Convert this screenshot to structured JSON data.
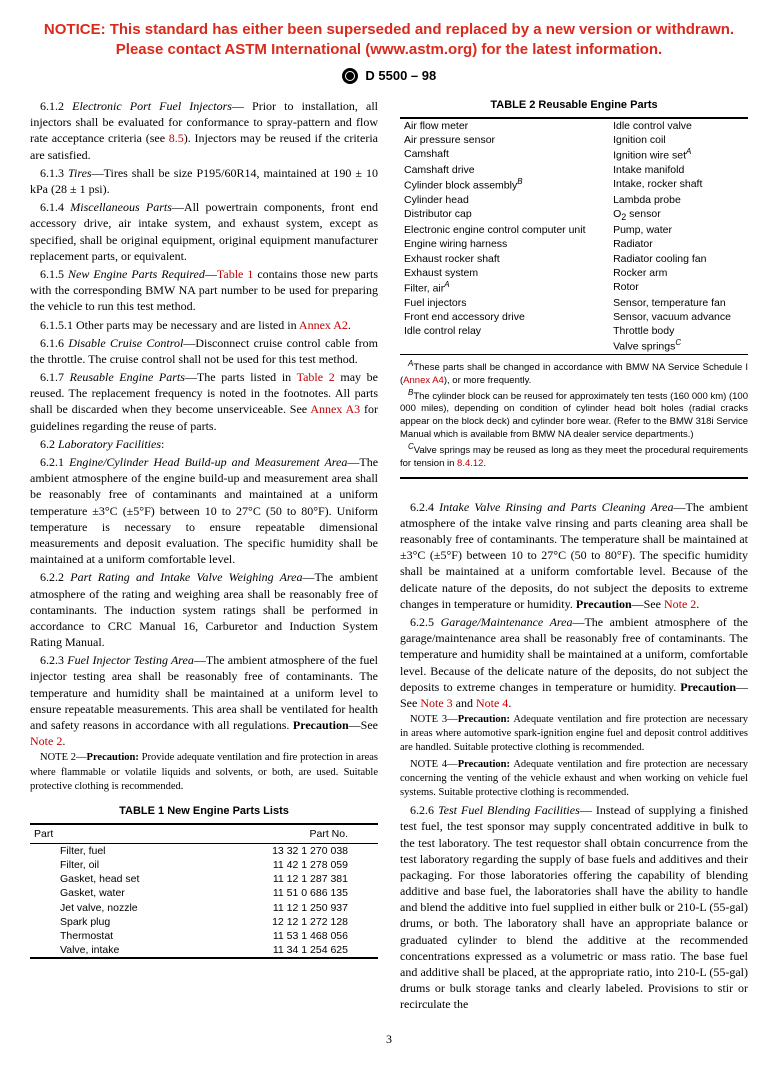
{
  "notice": {
    "line1": "NOTICE: This standard has either been superseded and replaced by a new version or withdrawn.",
    "line2": "Please contact ASTM International (www.astm.org) for the latest information.",
    "color": "#d92a1c"
  },
  "header": "D 5500 – 98",
  "page_number": "3",
  "paragraphs": {
    "p612_num": "6.1.2",
    "p612_title": "Electronic Port Fuel Injectors",
    "p612_body": "— Prior to installation, all injectors shall be evaluated for conformance to spray-pattern and flow rate acceptance criteria (see ",
    "p612_link": "8.5",
    "p612_body2": "). Injectors may be reused if the criteria are satisfied.",
    "p613_num": "6.1.3",
    "p613_title": "Tires",
    "p613_body": "—Tires shall be size P195/60R14, maintained at 190 ± 10 kPa (28 ± 1 psi).",
    "p614_num": "6.1.4",
    "p614_title": "Miscellaneous Parts",
    "p614_body": "—All powertrain components, front end accessory drive, air intake system, and exhaust system, except as specified, shall be original equipment, original equipment manufacturer replacement parts, or equivalent.",
    "p615_num": "6.1.5",
    "p615_title": "New Engine Parts Required",
    "p615_body": "—",
    "p615_link": "Table 1",
    "p615_body2": " contains those new parts with the corresponding BMW NA part number to be used for preparing the vehicle to run this test method.",
    "p6151_num": "6.1.5.1",
    "p6151_body": " Other parts may be necessary and are listed in ",
    "p6151_link": "Annex A2",
    "p6151_body2": ".",
    "p616_num": "6.1.6",
    "p616_title": "Disable Cruise Control",
    "p616_body": "—Disconnect cruise control cable from the throttle. The cruise control shall not be used for this test method.",
    "p617_num": "6.1.7",
    "p617_title": "Reusable Engine Parts",
    "p617_body": "—The parts listed in ",
    "p617_link": "Table 2",
    "p617_body2": " may be reused. The replacement frequency is noted in the footnotes. All parts shall be discarded when they become unserviceable. See ",
    "p617_link2": "Annex A3",
    "p617_body3": " for guidelines regarding the reuse of parts.",
    "p62_num": "6.2",
    "p62_title": "Laboratory Facilities",
    "p621_num": "6.2.1",
    "p621_title": "Engine/Cylinder Head Build-up and Measurement Area",
    "p621_body": "—The ambient atmosphere of the engine build-up and measurement area shall be reasonably free of contaminants and maintained at a uniform temperature ±3°C (±5°F) between 10 to 27°C (50 to 80°F). Uniform temperature is necessary to ensure repeatable dimensional measurements and deposit evaluation. The specific humidity shall be maintained at a uniform comfortable level.",
    "p622_num": "6.2.2",
    "p622_title": "Part Rating and Intake Valve Weighing Area",
    "p622_body": "—The ambient atmosphere of the rating and weighing area shall be reasonably free of contaminants. The induction system ratings shall be performed in accordance to CRC Manual 16, Carburetor and Induction System Rating Manual.",
    "p623_num": "6.2.3",
    "p623_title": "Fuel Injector Testing Area",
    "p623_body": "—The ambient atmosphere of the fuel injector testing area shall be reasonably free of contaminants. The temperature and humidity shall be maintained at a uniform level to ensure repeatable measurements. This area shall be ventilated for health and safety reasons in accordance with all regulations. ",
    "p623_prec": "Precaution",
    "p623_body2": "—See ",
    "p623_link": "Note 2",
    "p623_body3": ".",
    "note2_label": "NOTE 2—",
    "note2_title": "Precaution:",
    "note2_body": " Provide adequate ventilation and fire protection in areas where flammable or volatile liquids and solvents, or both, are used. Suitable protective clothing is recommended.",
    "p624_num": "6.2.4",
    "p624_title": "Intake Valve Rinsing and Parts Cleaning Area",
    "p624_body": "—The ambient atmosphere of the intake valve rinsing and parts cleaning area shall be reasonably free of contaminants. The temperature shall be maintained at ±3°C (±5°F) between 10 to 27°C (50 to 80°F). The specific humidity shall be maintained at a uniform comfortable level. Because of the delicate nature of the deposits, do not subject the deposits to extreme changes in temperature or humidity. ",
    "p624_prec": "Precaution",
    "p624_body2": "—See ",
    "p624_link": "Note 2",
    "p624_body3": ".",
    "p625_num": "6.2.5",
    "p625_title": "Garage/Maintenance Area",
    "p625_body": "—The ambient atmosphere of the garage/maintenance area shall be reasonably free of contaminants. The temperature and humidity shall be maintained at a uniform, comfortable level. Because of the delicate nature of the deposits, do not subject the deposits to extreme changes in temperature or humidity. ",
    "p625_prec": "Precaution",
    "p625_body2": "—See ",
    "p625_link1": "Note 3",
    "p625_and": " and ",
    "p625_link2": "Note 4",
    "p625_body3": ".",
    "note3_label": "NOTE 3—",
    "note3_title": "Precaution:",
    "note3_body": " Adequate ventilation and fire protection are necessary in areas where automotive spark-ignition engine fuel and deposit control additives are handled. Suitable protective clothing is recommended.",
    "note4_label": "NOTE 4—",
    "note4_title": "Precaution:",
    "note4_body": " Adequate ventilation and fire protection are necessary concerning the venting of the vehicle exhaust and when working on vehicle fuel systems. Suitable protective clothing is recommended.",
    "p626_num": "6.2.6",
    "p626_title": "Test Fuel Blending Facilities",
    "p626_body": "— Instead of supplying a finished test fuel, the test sponsor may supply concentrated additive in bulk to the test laboratory. The test requestor shall obtain concurrence from the test laboratory regarding the supply of base fuels and additives and their packaging. For those laboratories offering the capability of blending additive and base fuel, the laboratories shall have the ability to handle and blend the additive into fuel supplied in either bulk or 210-L (55-gal) drums, or both. The laboratory shall have an appropriate balance or graduated cylinder to blend the additive at the recommended concentrations expressed as a volumetric or mass ratio. The base fuel and additive shall be placed, at the appropriate ratio, into 210-L (55-gal) drums or bulk storage tanks and clearly labeled. Provisions to stir or recirculate the"
  },
  "table1": {
    "title": "TABLE 1  New Engine Parts Lists",
    "col1": "Part",
    "col2": "Part No.",
    "rows": [
      [
        "Filter, fuel",
        "13 32 1 270 038"
      ],
      [
        "Filter, oil",
        "11 42 1 278 059"
      ],
      [
        "Gasket, head set",
        "11 12 1 287 381"
      ],
      [
        "Gasket, water",
        "11 51 0 686 135"
      ],
      [
        "Jet valve, nozzle",
        "11 12 1 250 937"
      ],
      [
        "Spark plug",
        "12 12 1 272 128"
      ],
      [
        "Thermostat",
        "11 53 1 468 056"
      ],
      [
        "Valve, intake",
        "11 34 1 254 625"
      ]
    ]
  },
  "table2": {
    "title": "TABLE 2  Reusable Engine Parts",
    "col1_rows": [
      "Air flow meter",
      "Air pressure sensor",
      "Camshaft",
      "Camshaft drive",
      "Cylinder block assembly",
      "Cylinder head",
      "Distributor cap",
      "Electronic engine control computer unit",
      "Engine wiring harness",
      "Exhaust rocker shaft",
      "Exhaust system",
      "Filter, air",
      "Fuel injectors",
      "Front end accessory drive",
      "Idle control relay"
    ],
    "col1_sup": [
      "",
      "",
      "",
      "",
      "B",
      "",
      "",
      "",
      "",
      "",
      "",
      "A",
      "",
      "",
      ""
    ],
    "col2_rows": [
      "Idle control valve",
      "Ignition coil",
      "Ignition wire set",
      "Intake manifold",
      "Intake, rocker shaft",
      "Lambda probe",
      "O",
      "Pump, water",
      "Radiator",
      "Radiator cooling fan",
      "Rocker arm",
      "Rotor",
      "Sensor, temperature fan",
      "Sensor, vacuum advance",
      "Throttle body",
      "Valve springs"
    ],
    "col2_sup": [
      "",
      "",
      "A",
      "",
      "",
      "",
      "",
      "",
      "",
      "",
      "",
      "",
      "",
      "",
      "",
      "C"
    ],
    "o2_sub": "2",
    "o2_tail": " sensor",
    "footnote_a_pre": "These parts shall be changed in accordance with BMW NA Service Schedule I (",
    "footnote_a_link": "Annex A4",
    "footnote_a_post": "), or more frequently.",
    "footnote_b": "The cylinder block can be reused for approximately ten tests (160 000 km) (100 000 miles), depending on condition of cylinder head bolt holes (radial cracks appear on the block deck) and cylinder bore wear. (Refer to the BMW 318i Service Manual which is available from BMW NA dealer service departments.)",
    "footnote_c_pre": "Valve springs may be reused as long as they meet the procedural requirements for tension in ",
    "footnote_c_link": "8.4.12",
    "footnote_c_post": "."
  }
}
